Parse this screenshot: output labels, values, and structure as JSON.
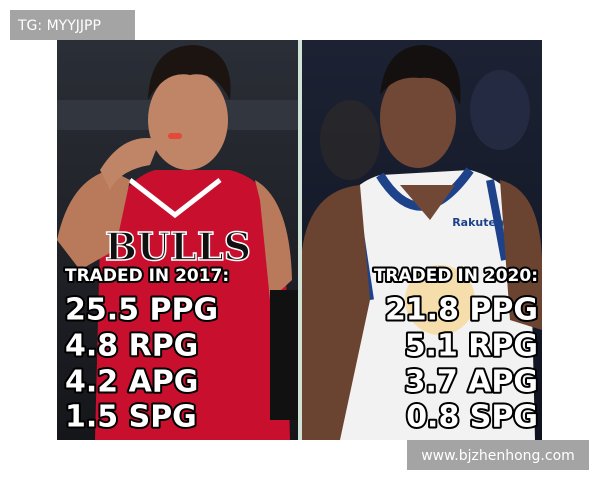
{
  "watermark_top": "TG: MYYJJPP",
  "watermark_bottom": "www.bjzhenhong.com",
  "left_panel": {
    "heading": "TRADED IN 2017:",
    "stats": [
      "25.5 PPG",
      "4.8 RPG",
      "4.2 APG",
      "1.5 SPG"
    ],
    "jersey_text": "BULLS"
  },
  "right_panel": {
    "heading": "TRADED IN 2020:",
    "stats": [
      "21.8 PPG",
      "5.1 RPG",
      "3.7 APG",
      "0.8 SPG"
    ],
    "jersey_text": "Rakuten"
  }
}
